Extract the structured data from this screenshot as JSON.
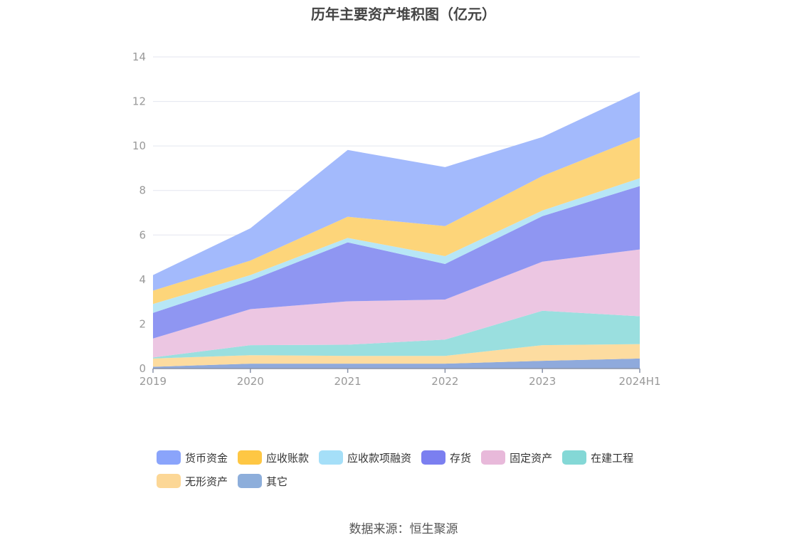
{
  "chart_data": {
    "type": "area",
    "stacked": true,
    "title": "历年主要资产堆积图（亿元）",
    "categories": [
      "2019",
      "2020",
      "2021",
      "2022",
      "2023",
      "2024H1"
    ],
    "ylim": [
      0,
      14
    ],
    "yticks": [
      0,
      2,
      4,
      6,
      8,
      10,
      12,
      14
    ],
    "grid": true,
    "legend_position": "bottom",
    "series": [
      {
        "name": "其它",
        "color": "#8faadc",
        "values": [
          0.08,
          0.22,
          0.22,
          0.22,
          0.35,
          0.45
        ]
      },
      {
        "name": "无形资产",
        "color": "#fddca0",
        "values": [
          0.37,
          0.38,
          0.35,
          0.35,
          0.7,
          0.65
        ]
      },
      {
        "name": "在建工程",
        "color": "#9adfdf",
        "values": [
          0.05,
          0.45,
          0.5,
          0.73,
          1.55,
          1.25
        ]
      },
      {
        "name": "固定资产",
        "color": "#ecc6e2",
        "values": [
          0.85,
          1.62,
          1.95,
          1.8,
          2.2,
          3.0
        ]
      },
      {
        "name": "存货",
        "color": "#8f96f2",
        "values": [
          1.15,
          1.28,
          2.65,
          1.6,
          2.05,
          2.85
        ]
      },
      {
        "name": "应收款项融资",
        "color": "#b7e6f6",
        "values": [
          0.4,
          0.25,
          0.2,
          0.35,
          0.25,
          0.35
        ]
      },
      {
        "name": "应收账款",
        "color": "#fdd57a",
        "values": [
          0.6,
          0.65,
          0.95,
          1.35,
          1.55,
          1.85
        ]
      },
      {
        "name": "货币资金",
        "color": "#a3bafc",
        "values": [
          0.7,
          1.45,
          3.0,
          2.65,
          1.75,
          2.05
        ]
      }
    ]
  },
  "legend_rows": [
    [
      {
        "name": "货币资金",
        "color": "#8aa4fb"
      },
      {
        "name": "应收账款",
        "color": "#fec744"
      },
      {
        "name": "应收款项融资",
        "color": "#a5dff8"
      },
      {
        "name": "存货",
        "color": "#7b7ff0"
      },
      {
        "name": "固定资产",
        "color": "#e8b9da"
      },
      {
        "name": "在建工程",
        "color": "#84d8d6"
      }
    ],
    [
      {
        "name": "无形资产",
        "color": "#fcd796"
      },
      {
        "name": "其它",
        "color": "#8daedb"
      }
    ]
  ],
  "source": "数据来源：恒生聚源"
}
